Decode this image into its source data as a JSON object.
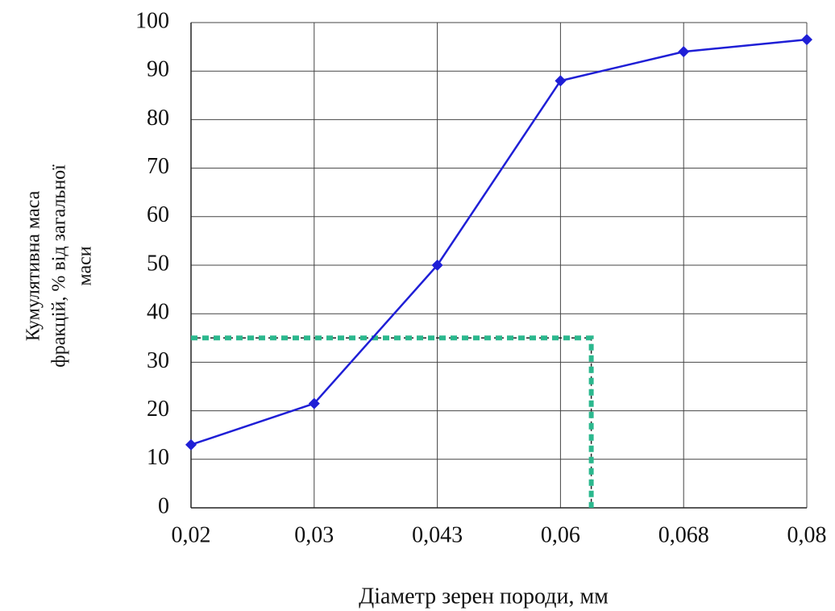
{
  "chart_data": {
    "type": "line",
    "x_label": "Діаметр зерен породи, мм",
    "y_label": [
      "Кумулятивна маса",
      "фракцій, % від загальної",
      "маси"
    ],
    "categories": [
      "0,02",
      "0,03",
      "0,043",
      "0,06",
      "0,068",
      "0,08"
    ],
    "series": [
      {
        "color": "#1f1fd6",
        "values": [
          13,
          21.5,
          50,
          88,
          94,
          96.5
        ]
      }
    ],
    "guide": {
      "y": 35,
      "x": 3.25,
      "color": "#2bb88e"
    },
    "ylim": [
      0,
      100
    ],
    "yticks": [
      0,
      10,
      20,
      30,
      40,
      50,
      60,
      70,
      80,
      90,
      100
    ],
    "grid": true
  }
}
